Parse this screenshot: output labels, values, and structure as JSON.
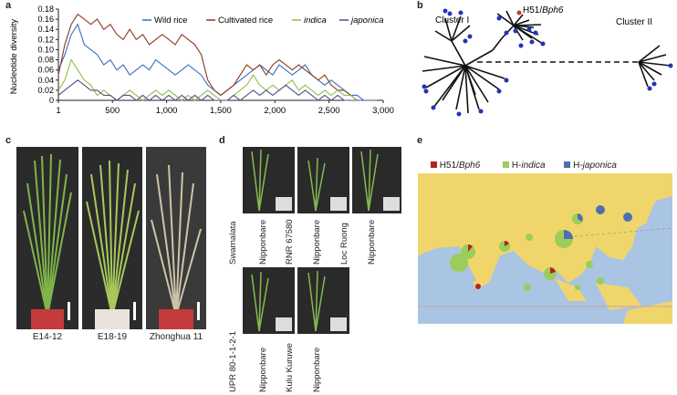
{
  "panels": {
    "a": "a",
    "b": "b",
    "c": "c",
    "d": "d",
    "e": "e"
  },
  "chart_data": {
    "type": "line",
    "ylabel": "Nucleotide diversity",
    "xlabel": "",
    "ylim": [
      0,
      0.18
    ],
    "xlim": [
      1,
      3000
    ],
    "y_ticks": [
      "0",
      "0.02",
      "0.04",
      "0.06",
      "0.08",
      "0.10",
      "0.12",
      "0.14",
      "0.16",
      "0.18"
    ],
    "x_ticks": [
      "1",
      "500",
      "1,000",
      "1,500",
      "2,000",
      "2,500",
      "3,000"
    ],
    "x": [
      1,
      60,
      120,
      180,
      240,
      300,
      360,
      420,
      480,
      540,
      600,
      660,
      720,
      780,
      840,
      900,
      960,
      1020,
      1080,
      1140,
      1200,
      1260,
      1320,
      1380,
      1440,
      1500,
      1560,
      1620,
      1680,
      1740,
      1800,
      1860,
      1920,
      1980,
      2040,
      2100,
      2160,
      2220,
      2280,
      2340,
      2400,
      2460,
      2520,
      2580,
      2640,
      2700,
      2760,
      2820,
      2880,
      2940
    ],
    "series": [
      {
        "name": "Wild rice",
        "color": "#3a6ebf",
        "values": [
          0.06,
          0.09,
          0.13,
          0.15,
          0.11,
          0.1,
          0.09,
          0.07,
          0.08,
          0.06,
          0.07,
          0.05,
          0.06,
          0.07,
          0.06,
          0.08,
          0.07,
          0.06,
          0.05,
          0.06,
          0.07,
          0.06,
          0.05,
          0.03,
          0.02,
          0.01,
          0.02,
          0.03,
          0.04,
          0.05,
          0.06,
          0.07,
          0.06,
          0.05,
          0.07,
          0.06,
          0.05,
          0.06,
          0.07,
          0.05,
          0.04,
          0.03,
          0.04,
          0.03,
          0.02,
          0.01,
          0.01,
          0.0,
          0.0,
          0.0
        ]
      },
      {
        "name": "Cultivated rice",
        "color": "#8b3a1e",
        "values": [
          0.05,
          0.11,
          0.15,
          0.17,
          0.16,
          0.15,
          0.16,
          0.14,
          0.15,
          0.13,
          0.12,
          0.14,
          0.12,
          0.13,
          0.11,
          0.12,
          0.13,
          0.12,
          0.11,
          0.13,
          0.12,
          0.11,
          0.09,
          0.04,
          0.02,
          0.01,
          0.02,
          0.03,
          0.05,
          0.07,
          0.06,
          0.07,
          0.05,
          0.07,
          0.08,
          0.07,
          0.06,
          0.07,
          0.06,
          0.05,
          0.04,
          0.05,
          0.03,
          0.02,
          0.02,
          0.01,
          0.0,
          0.0,
          0.0,
          0.0
        ]
      },
      {
        "name": "indica",
        "color": "#8bbf4a",
        "values": [
          0.02,
          0.04,
          0.08,
          0.06,
          0.04,
          0.03,
          0.01,
          0.02,
          0.01,
          0.0,
          0.01,
          0.02,
          0.01,
          0.0,
          0.01,
          0.02,
          0.01,
          0.02,
          0.01,
          0.0,
          0.01,
          0.0,
          0.01,
          0.02,
          0.01,
          0.0,
          0.0,
          0.01,
          0.02,
          0.03,
          0.05,
          0.03,
          0.02,
          0.03,
          0.02,
          0.03,
          0.04,
          0.02,
          0.03,
          0.02,
          0.01,
          0.02,
          0.01,
          0.02,
          0.01,
          0.01,
          0.0,
          0.0,
          0.0,
          0.0
        ]
      },
      {
        "name": "japonica",
        "color": "#5a4a8a",
        "values": [
          0.01,
          0.02,
          0.03,
          0.04,
          0.03,
          0.02,
          0.02,
          0.01,
          0.01,
          0.0,
          0.01,
          0.01,
          0.0,
          0.01,
          0.0,
          0.01,
          0.0,
          0.01,
          0.0,
          0.01,
          0.0,
          0.01,
          0.0,
          0.01,
          0.0,
          0.0,
          0.0,
          0.01,
          0.0,
          0.01,
          0.02,
          0.01,
          0.02,
          0.01,
          0.02,
          0.03,
          0.02,
          0.01,
          0.02,
          0.01,
          0.0,
          0.01,
          0.0,
          0.01,
          0.0,
          0.0,
          0.0,
          0.0,
          0.0,
          0.0
        ]
      }
    ],
    "legend": [
      "Wild rice",
      "Cultivated rice",
      "indica",
      "japonica"
    ],
    "grid": false,
    "legend_position": "top-right"
  },
  "tree": {
    "cluster1": "Cluster I",
    "cluster2": "Cluster II",
    "highlight_prefix": "H51/",
    "highlight_gene": "Bph6"
  },
  "panel_c": {
    "captions": [
      "E14-12",
      "E18-19",
      "Zhonghua 11"
    ]
  },
  "panel_d": {
    "top_labels": [
      "Swarnalata",
      "Nipponbare",
      "RNR 67580",
      "Nipponbare",
      "Loc Ruong",
      "Nipponbare"
    ],
    "bottom_labels": [
      "UPR 80-1-1-2-1",
      "Nipponbare",
      "Kulu Kuruwe",
      "Nipponbare"
    ]
  },
  "map": {
    "legend": [
      {
        "prefix": "H51/",
        "italic": "Bph6",
        "color": "#b22222"
      },
      {
        "prefix": "H-",
        "italic": "indica",
        "color": "#9ccc5a"
      },
      {
        "prefix": "H-",
        "italic": "japonica",
        "color": "#4a6fb5"
      }
    ],
    "colors": {
      "sea": "#aac4e4",
      "land": "#f0d66a"
    }
  }
}
